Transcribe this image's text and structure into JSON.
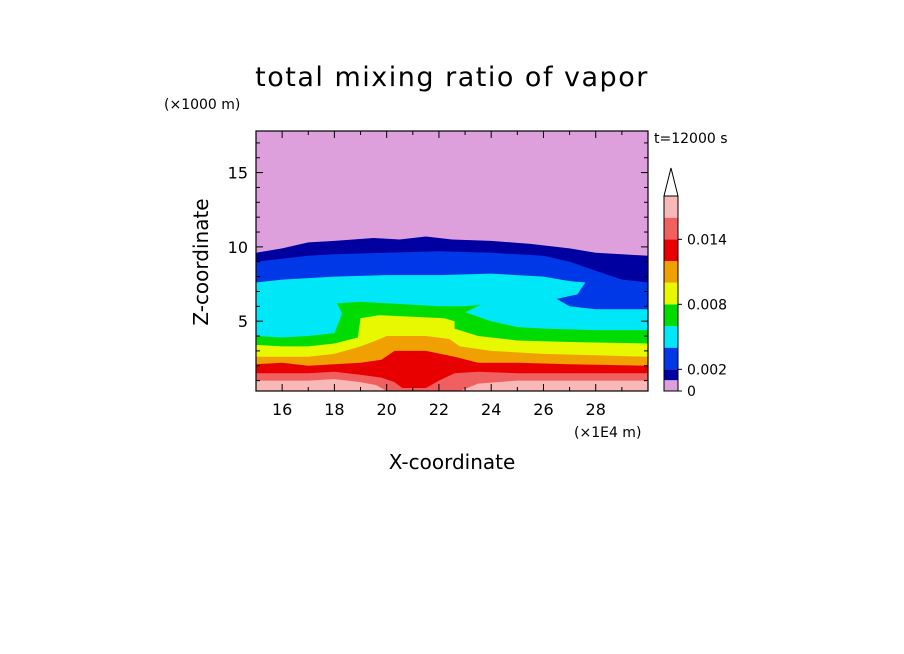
{
  "chart_data": {
    "type": "heatmap",
    "title": "total mixing ratio of vapor",
    "xlabel": "X-coordinate",
    "ylabel": "Z-coordinate",
    "x_unit": "(×1E4 m)",
    "y_unit": "(×1000 m)",
    "time_label": "t=12000 s",
    "xlim": [
      15,
      30
    ],
    "ylim": [
      0.3,
      17.8
    ],
    "x_ticks": [
      16,
      18,
      20,
      22,
      24,
      26,
      28
    ],
    "y_ticks": [
      5,
      10,
      15
    ],
    "colorbar": {
      "levels": [
        0,
        0.001,
        0.002,
        0.004,
        0.006,
        0.008,
        0.01,
        0.012,
        0.014,
        0.016,
        0.018
      ],
      "tick_labels": [
        "0",
        "0.002",
        "0.008",
        "0.014"
      ],
      "colors": [
        "#dda0dd",
        "#0000a0",
        "#0038e8",
        "#00e8f8",
        "#00dc00",
        "#e8f800",
        "#f0a000",
        "#e80000",
        "#f06060",
        "#f8b8b8"
      ]
    },
    "bands": [
      {
        "level": 0.001,
        "color": "#0000a0",
        "top": [
          [
            15,
            9.6
          ],
          [
            16,
            9.9
          ],
          [
            17,
            10.3
          ],
          [
            18,
            10.4
          ],
          [
            19.5,
            10.6
          ],
          [
            20.5,
            10.5
          ],
          [
            21.5,
            10.7
          ],
          [
            22.5,
            10.5
          ],
          [
            24,
            10.4
          ],
          [
            25.5,
            10.2
          ],
          [
            27,
            9.9
          ],
          [
            28,
            9.6
          ],
          [
            29,
            9.5
          ],
          [
            30,
            9.4
          ]
        ]
      },
      {
        "level": 0.002,
        "color": "#0038e8",
        "top": [
          [
            15,
            9.0
          ],
          [
            16,
            9.2
          ],
          [
            17,
            9.4
          ],
          [
            18,
            9.5
          ],
          [
            20,
            9.6
          ],
          [
            22,
            9.7
          ],
          [
            24,
            9.6
          ],
          [
            26,
            9.4
          ],
          [
            27,
            9.0
          ],
          [
            28,
            8.4
          ],
          [
            29,
            7.8
          ],
          [
            30,
            7.6
          ]
        ]
      },
      {
        "level": 0.004,
        "color": "#00e8f8",
        "top": [
          [
            15,
            7.6
          ],
          [
            16,
            7.8
          ],
          [
            18,
            8.0
          ],
          [
            20,
            8.1
          ],
          [
            22,
            8.1
          ],
          [
            24,
            8.2
          ],
          [
            26,
            8.0
          ],
          [
            27,
            7.7
          ],
          [
            27.6,
            7.6
          ],
          [
            27.3,
            6.8
          ],
          [
            26.5,
            6.5
          ],
          [
            27,
            6.0
          ],
          [
            28,
            5.8
          ],
          [
            30,
            5.8
          ]
        ]
      },
      {
        "level": 0.006,
        "color": "#00dc00",
        "top": [
          [
            15,
            4.0
          ],
          [
            16,
            3.9
          ],
          [
            17,
            4.0
          ],
          [
            18,
            4.2
          ],
          [
            18.3,
            5.5
          ],
          [
            18.1,
            6.2
          ],
          [
            19,
            6.3
          ],
          [
            20,
            6.2
          ],
          [
            21,
            6.1
          ],
          [
            22,
            6.0
          ],
          [
            23,
            6.0
          ],
          [
            23.6,
            6.1
          ],
          [
            23,
            5.6
          ],
          [
            24,
            5.0
          ],
          [
            25,
            4.6
          ],
          [
            26,
            4.5
          ],
          [
            28,
            4.4
          ],
          [
            30,
            4.4
          ]
        ]
      },
      {
        "level": 0.008,
        "color": "#e8f800",
        "top": [
          [
            15,
            3.4
          ],
          [
            16,
            3.3
          ],
          [
            17,
            3.3
          ],
          [
            18,
            3.5
          ],
          [
            18.9,
            3.9
          ],
          [
            19,
            5.2
          ],
          [
            19.7,
            5.4
          ],
          [
            21,
            5.3
          ],
          [
            22.2,
            5.2
          ],
          [
            22.6,
            5.0
          ],
          [
            22.6,
            4.5
          ],
          [
            23.5,
            4.0
          ],
          [
            25,
            3.7
          ],
          [
            27,
            3.6
          ],
          [
            30,
            3.5
          ]
        ]
      },
      {
        "level": 0.01,
        "color": "#f0a000",
        "top": [
          [
            15,
            2.6
          ],
          [
            16,
            2.6
          ],
          [
            17,
            2.6
          ],
          [
            18,
            2.8
          ],
          [
            19,
            3.3
          ],
          [
            19.6,
            3.7
          ],
          [
            20,
            4.0
          ],
          [
            21.5,
            4.0
          ],
          [
            22.4,
            3.8
          ],
          [
            22.8,
            3.3
          ],
          [
            24,
            3.0
          ],
          [
            26,
            2.8
          ],
          [
            28,
            2.7
          ],
          [
            30,
            2.6
          ]
        ]
      },
      {
        "level": 0.012,
        "color": "#e80000",
        "top": [
          [
            15,
            2.1
          ],
          [
            16,
            2.2
          ],
          [
            17,
            2.0
          ],
          [
            18,
            2.1
          ],
          [
            19,
            2.2
          ],
          [
            19.8,
            2.4
          ],
          [
            20.3,
            3.0
          ],
          [
            21.5,
            3.0
          ],
          [
            22.6,
            2.6
          ],
          [
            23.5,
            2.2
          ],
          [
            25,
            2.2
          ],
          [
            27,
            2.1
          ],
          [
            30,
            2.0
          ]
        ]
      },
      {
        "level": 0.014,
        "color": "#f06060",
        "top": [
          [
            15,
            1.5
          ],
          [
            17,
            1.5
          ],
          [
            18,
            1.6
          ],
          [
            19,
            1.4
          ],
          [
            19.8,
            1.2
          ],
          [
            20.3,
            0.9
          ],
          [
            20.6,
            0.5
          ],
          [
            21.5,
            0.5
          ],
          [
            22,
            1.0
          ],
          [
            22.6,
            1.5
          ],
          [
            23.5,
            1.6
          ],
          [
            25,
            1.5
          ],
          [
            27,
            1.5
          ],
          [
            30,
            1.5
          ]
        ]
      },
      {
        "level": 0.016,
        "color": "#f8b8b8",
        "top": [
          [
            15,
            1.0
          ],
          [
            17,
            1.0
          ],
          [
            18,
            1.1
          ],
          [
            19,
            0.9
          ],
          [
            19.6,
            0.7
          ],
          [
            20,
            0.3
          ],
          [
            22.8,
            0.3
          ],
          [
            23.5,
            0.8
          ],
          [
            25,
            1.0
          ],
          [
            28,
            1.0
          ],
          [
            30,
            1.0
          ]
        ]
      }
    ]
  }
}
